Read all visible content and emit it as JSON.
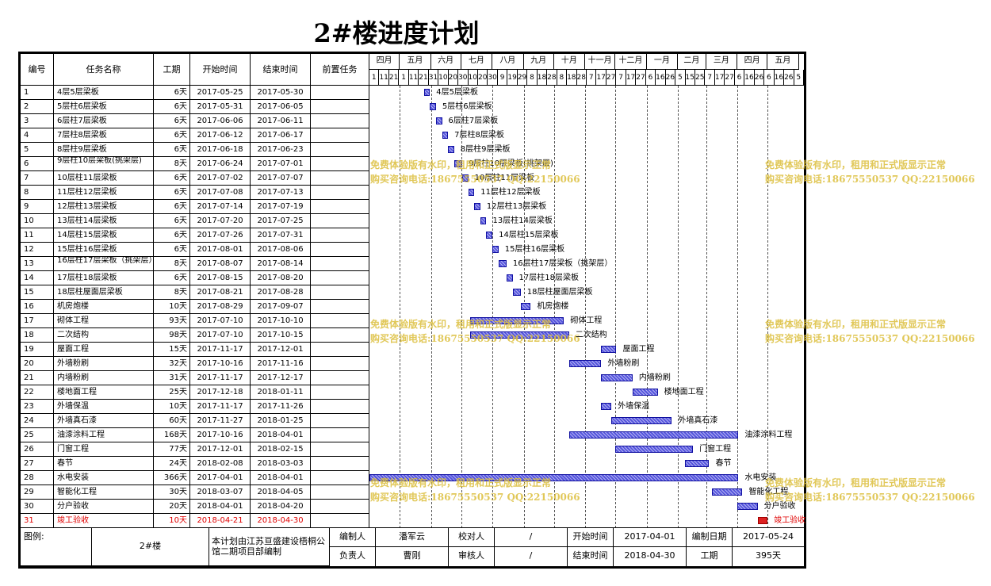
{
  "title": "2#楼进度计划",
  "table": {
    "headers": {
      "id": "编号",
      "task": "任务名称",
      "duration": "工期",
      "start": "开始时间",
      "end": "结束时间",
      "pred": "前置任务"
    },
    "rows": [
      {
        "id": "1",
        "task": "4层5层梁板",
        "duration": "6天",
        "start": "2017-05-25",
        "end": "2017-05-30",
        "pred": ""
      },
      {
        "id": "2",
        "task": "5层柱6层梁板",
        "duration": "6天",
        "start": "2017-05-31",
        "end": "2017-06-05",
        "pred": ""
      },
      {
        "id": "3",
        "task": "6层柱7层梁板",
        "duration": "6天",
        "start": "2017-06-06",
        "end": "2017-06-11",
        "pred": ""
      },
      {
        "id": "4",
        "task": "7层柱8层梁板",
        "duration": "6天",
        "start": "2017-06-12",
        "end": "2017-06-17",
        "pred": ""
      },
      {
        "id": "5",
        "task": "8层柱9层梁板",
        "duration": "6天",
        "start": "2017-06-18",
        "end": "2017-06-23",
        "pred": ""
      },
      {
        "id": "6",
        "task": "9层柱10层梁板(挑架层)",
        "duration": "8天",
        "start": "2017-06-24",
        "end": "2017-07-01",
        "pred": ""
      },
      {
        "id": "7",
        "task": "10层柱11层梁板",
        "duration": "6天",
        "start": "2017-07-02",
        "end": "2017-07-07",
        "pred": ""
      },
      {
        "id": "8",
        "task": "11层柱12层梁板",
        "duration": "6天",
        "start": "2017-07-08",
        "end": "2017-07-13",
        "pred": ""
      },
      {
        "id": "9",
        "task": "12层柱13层梁板",
        "duration": "6天",
        "start": "2017-07-14",
        "end": "2017-07-19",
        "pred": ""
      },
      {
        "id": "10",
        "task": "13层柱14层梁板",
        "duration": "6天",
        "start": "2017-07-20",
        "end": "2017-07-25",
        "pred": ""
      },
      {
        "id": "11",
        "task": "14层柱15层梁板",
        "duration": "6天",
        "start": "2017-07-26",
        "end": "2017-07-31",
        "pred": ""
      },
      {
        "id": "12",
        "task": "15层柱16层梁板",
        "duration": "6天",
        "start": "2017-08-01",
        "end": "2017-08-06",
        "pred": ""
      },
      {
        "id": "13",
        "task": "16层柱17层梁板（挑架层）",
        "duration": "8天",
        "start": "2017-08-07",
        "end": "2017-08-14",
        "pred": ""
      },
      {
        "id": "14",
        "task": "17层柱18层梁板",
        "duration": "6天",
        "start": "2017-08-15",
        "end": "2017-08-20",
        "pred": ""
      },
      {
        "id": "15",
        "task": "18层柱屋面层梁板",
        "duration": "8天",
        "start": "2017-08-21",
        "end": "2017-08-28",
        "pred": ""
      },
      {
        "id": "16",
        "task": "机房炮楼",
        "duration": "10天",
        "start": "2017-08-29",
        "end": "2017-09-07",
        "pred": ""
      },
      {
        "id": "17",
        "task": "砌体工程",
        "duration": "93天",
        "start": "2017-07-10",
        "end": "2017-10-10",
        "pred": ""
      },
      {
        "id": "18",
        "task": "二次结构",
        "duration": "98天",
        "start": "2017-07-10",
        "end": "2017-10-15",
        "pred": ""
      },
      {
        "id": "19",
        "task": "屋面工程",
        "duration": "15天",
        "start": "2017-11-17",
        "end": "2017-12-01",
        "pred": ""
      },
      {
        "id": "20",
        "task": "外墙粉刷",
        "duration": "32天",
        "start": "2017-10-16",
        "end": "2017-11-16",
        "pred": ""
      },
      {
        "id": "21",
        "task": "内墙粉刷",
        "duration": "31天",
        "start": "2017-11-17",
        "end": "2017-12-17",
        "pred": ""
      },
      {
        "id": "22",
        "task": "楼地面工程",
        "duration": "25天",
        "start": "2017-12-18",
        "end": "2018-01-11",
        "pred": ""
      },
      {
        "id": "23",
        "task": "外墙保温",
        "duration": "10天",
        "start": "2017-11-17",
        "end": "2017-11-26",
        "pred": ""
      },
      {
        "id": "24",
        "task": "外墙真石漆",
        "duration": "60天",
        "start": "2017-11-27",
        "end": "2018-01-25",
        "pred": ""
      },
      {
        "id": "25",
        "task": "油漆涂料工程",
        "duration": "168天",
        "start": "2017-10-16",
        "end": "2018-04-01",
        "pred": ""
      },
      {
        "id": "26",
        "task": "门窗工程",
        "duration": "77天",
        "start": "2017-12-01",
        "end": "2018-02-15",
        "pred": ""
      },
      {
        "id": "27",
        "task": "春节",
        "duration": "24天",
        "start": "2018-02-08",
        "end": "2018-03-03",
        "pred": ""
      },
      {
        "id": "28",
        "task": "水电安装",
        "duration": "366天",
        "start": "2017-04-01",
        "end": "2018-04-01",
        "pred": ""
      },
      {
        "id": "29",
        "task": "智能化工程",
        "duration": "30天",
        "start": "2018-03-07",
        "end": "2018-04-05",
        "pred": ""
      },
      {
        "id": "30",
        "task": "分户验收",
        "duration": "20天",
        "start": "2018-04-01",
        "end": "2018-04-20",
        "pred": ""
      },
      {
        "id": "31",
        "task": "竣工验收",
        "duration": "10天",
        "start": "2018-04-21",
        "end": "2018-04-30",
        "pred": "",
        "highlight": "#e00000"
      }
    ]
  },
  "gantt": {
    "months": [
      "四月",
      "五月",
      "六月",
      "七月",
      "八月",
      "九月",
      "十月",
      "十一月",
      "十二月",
      "一月",
      "二月",
      "三月",
      "四月",
      "五月"
    ],
    "day_ticks": [
      "1",
      "11",
      "21",
      "1",
      "11",
      "21",
      "31",
      "10",
      "20",
      "30",
      "10",
      "20",
      "30",
      "9",
      "19",
      "29",
      "8",
      "18",
      "28",
      "8",
      "18",
      "28",
      "7",
      "17",
      "27",
      "7",
      "17",
      "27",
      "6",
      "16",
      "26",
      "5",
      "15",
      "25",
      "7",
      "17",
      "27",
      "6",
      "16",
      "26",
      "6",
      "16",
      "26",
      "5"
    ],
    "bar_labels": [
      "4层5层梁板",
      "5层柱6层梁板",
      "6层柱7层梁板",
      "7层柱8层梁板",
      "8层柱9层梁板",
      "9层柱10层梁板(挑架层)",
      "10层柱11层梁板",
      "11层柱12层梁板",
      "12层柱13层梁板",
      "13层柱14层梁板",
      "14层柱15层梁板",
      "15层柱16层梁板",
      "16层柱17层梁板（挑架层）",
      "17层柱18层梁板",
      "18层柱屋面层梁板",
      "机房炮楼",
      "砌体工程",
      "二次结构",
      "屋面工程",
      "外墙粉刷",
      "内墙粉刷",
      "楼地面工程",
      "外墙保温",
      "外墙真石漆",
      "油漆涂料工程",
      "门窗工程",
      "春节",
      "水电安装",
      "智能化工程",
      "分户验收",
      "竣工验收"
    ],
    "bar_color": "#5555dd",
    "highlight_color": "#dd2222"
  },
  "watermark": {
    "line1": "免费体验版有水印，租用和正式版显示正常",
    "line2": "购买咨询电话:18675550537 QQ:22150066"
  },
  "footer": {
    "legend_label": "图例:",
    "building": "2#楼",
    "note": "本计划由江苏亘盛建设梧桐公馆二期项目部编制",
    "compiler_label": "编制人",
    "compiler": "潘军云",
    "checker_label": "校对人",
    "checker": "/",
    "start_label": "开始时间",
    "start": "2017-04-01",
    "date_label": "编制日期",
    "date": "2017-05-24",
    "manager_label": "负责人",
    "manager": "曹刚",
    "reviewer_label": "审核人",
    "reviewer": "/",
    "end_label": "结束时间",
    "end": "2018-04-30",
    "duration_label": "工期",
    "duration": "395天"
  }
}
